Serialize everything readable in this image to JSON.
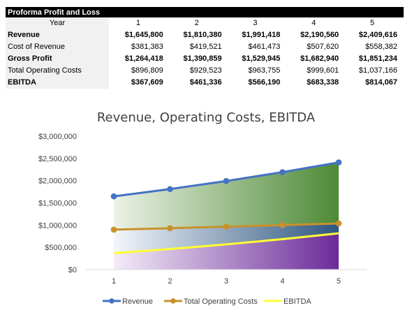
{
  "table": {
    "title": "Proforma Profit and Loss",
    "year_label": "Year",
    "years": [
      "1",
      "2",
      "3",
      "4",
      "5"
    ],
    "rows": [
      {
        "label": "Revenue",
        "bold": true,
        "values": [
          "$1,645,800",
          "$1,810,380",
          "$1,991,418",
          "$2,190,560",
          "$2,409,616"
        ]
      },
      {
        "label": "Cost of Revenue",
        "bold": false,
        "values": [
          "$381,383",
          "$419,521",
          "$461,473",
          "$507,620",
          "$558,382"
        ]
      },
      {
        "label": "Gross Profit",
        "bold": true,
        "values": [
          "$1,264,418",
          "$1,390,859",
          "$1,529,945",
          "$1,682,940",
          "$1,851,234"
        ]
      },
      {
        "label": "Total Operating Costs",
        "bold": false,
        "values": [
          "$896,809",
          "$929,523",
          "$963,755",
          "$999,601",
          "$1,037,166"
        ]
      },
      {
        "label": "EBITDA",
        "bold": true,
        "values": [
          "$367,609",
          "$461,336",
          "$566,190",
          "$683,338",
          "$814,067"
        ]
      }
    ]
  },
  "chart_data": {
    "type": "line",
    "title": "Revenue, Operating Costs, EBITDA",
    "xlabel": "",
    "ylabel": "",
    "x": [
      1,
      2,
      3,
      4,
      5
    ],
    "ylim": [
      0,
      3000000
    ],
    "yticks": [
      0,
      500000,
      1000000,
      1500000,
      2000000,
      2500000,
      3000000
    ],
    "ytick_labels": [
      "$0",
      "$500,000",
      "$1,000,000",
      "$1,500,000",
      "$2,000,000",
      "$2,500,000",
      "$3,000,000"
    ],
    "grid": false,
    "legend": "bottom",
    "series": [
      {
        "name": "Revenue",
        "values": [
          1645800,
          1810380,
          1991418,
          2190560,
          2409616
        ],
        "color": "#4472c4",
        "markers": true
      },
      {
        "name": "Total Operating Costs",
        "values": [
          896809,
          929523,
          963755,
          999601,
          1037166
        ],
        "color": "#c9912a",
        "markers": true
      },
      {
        "name": "EBITDA",
        "values": [
          367609,
          461336,
          566190,
          683338,
          814067
        ],
        "color": "#ffff33",
        "markers": false
      }
    ]
  }
}
